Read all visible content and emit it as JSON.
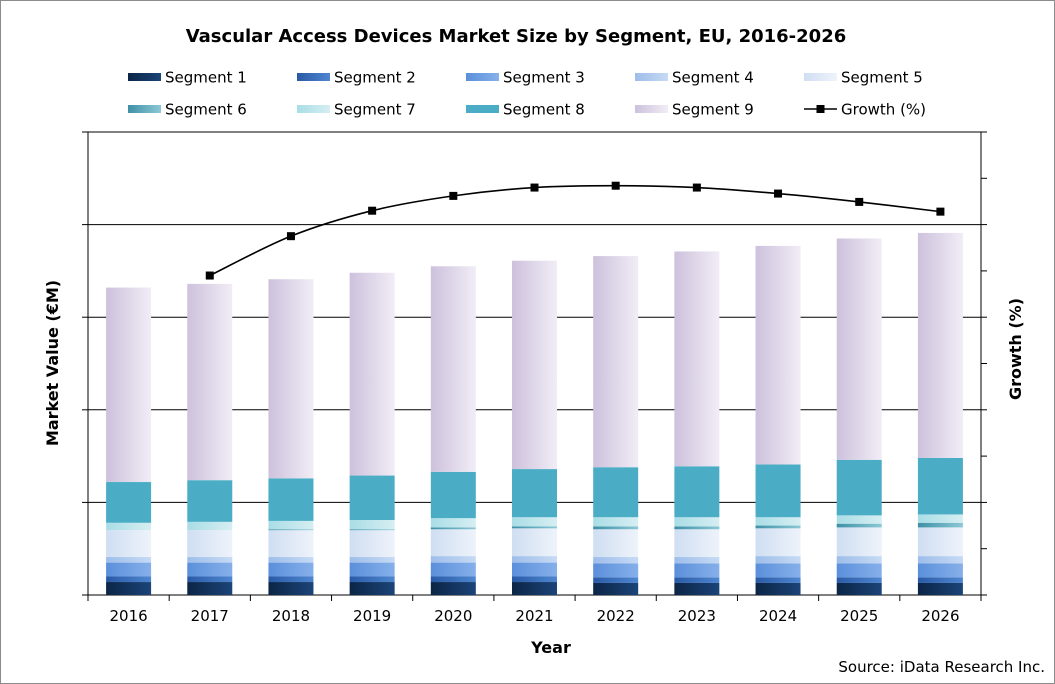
{
  "chart_data": {
    "type": "bar",
    "stacked": true,
    "title": "Vascular Access Devices Market Size by Segment, EU, 2016-2026",
    "xlabel": "Year",
    "ylabel": "Market Value (€M)",
    "y2label": "Growth (%)",
    "categories": [
      "2016",
      "2017",
      "2018",
      "2019",
      "2020",
      "2021",
      "2022",
      "2023",
      "2024",
      "2025",
      "2026"
    ],
    "ylim": [
      0,
      5
    ],
    "y2lim": [
      0,
      10
    ],
    "grid": true,
    "legend_position": "top",
    "series": [
      {
        "name": "Segment 1",
        "color_a": "#0b2546",
        "color_b": "#1b4478",
        "values": [
          0.14,
          0.14,
          0.14,
          0.14,
          0.14,
          0.14,
          0.13,
          0.13,
          0.13,
          0.13,
          0.13
        ]
      },
      {
        "name": "Segment 2",
        "color_a": "#2a5aa6",
        "color_b": "#4f86d0",
        "values": [
          0.06,
          0.06,
          0.06,
          0.06,
          0.06,
          0.06,
          0.06,
          0.06,
          0.06,
          0.06,
          0.06
        ]
      },
      {
        "name": "Segment 3",
        "color_a": "#5b8fdb",
        "color_b": "#86b0ea",
        "values": [
          0.15,
          0.15,
          0.15,
          0.15,
          0.15,
          0.15,
          0.15,
          0.15,
          0.15,
          0.15,
          0.15
        ]
      },
      {
        "name": "Segment 4",
        "color_a": "#9dbdea",
        "color_b": "#c6daf4",
        "values": [
          0.06,
          0.06,
          0.06,
          0.06,
          0.07,
          0.07,
          0.07,
          0.07,
          0.08,
          0.08,
          0.08
        ]
      },
      {
        "name": "Segment 5",
        "color_a": "#cfdef2",
        "color_b": "#eef3fa",
        "values": [
          0.29,
          0.29,
          0.29,
          0.29,
          0.29,
          0.3,
          0.3,
          0.3,
          0.3,
          0.31,
          0.31
        ]
      },
      {
        "name": "Segment 6",
        "color_a": "#3f90a6",
        "color_b": "#8cc8d6",
        "values": [
          0.0,
          0.0,
          0.01,
          0.01,
          0.02,
          0.02,
          0.03,
          0.03,
          0.03,
          0.04,
          0.05
        ]
      },
      {
        "name": "Segment 7",
        "color_a": "#a9dde6",
        "color_b": "#d6eef2",
        "values": [
          0.08,
          0.09,
          0.09,
          0.1,
          0.1,
          0.1,
          0.1,
          0.1,
          0.09,
          0.09,
          0.09
        ]
      },
      {
        "name": "Segment 8",
        "color_a": "#4aadc5",
        "color_b": "#4aadc5",
        "values": [
          0.44,
          0.45,
          0.46,
          0.48,
          0.5,
          0.52,
          0.54,
          0.55,
          0.57,
          0.6,
          0.61
        ]
      },
      {
        "name": "Segment 9",
        "color_a": "#cdc1dc",
        "color_b": "#f1edf6",
        "values": [
          2.1,
          2.12,
          2.15,
          2.19,
          2.22,
          2.25,
          2.28,
          2.32,
          2.36,
          2.39,
          2.43
        ]
      }
    ],
    "line_series": {
      "name": "Growth (%)",
      "color": "#000000",
      "values": [
        null,
        6.9,
        7.75,
        8.3,
        8.62,
        8.8,
        8.84,
        8.8,
        8.67,
        8.49,
        8.28
      ]
    },
    "source": "Source: iData Research Inc."
  }
}
